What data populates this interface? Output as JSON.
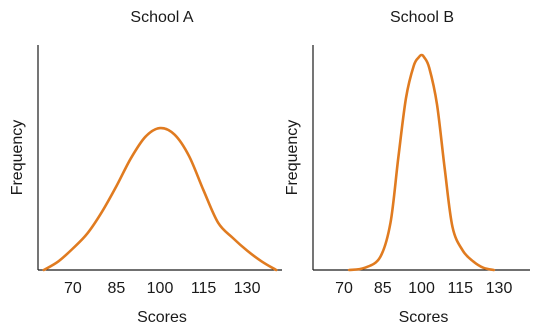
{
  "chart_data": [
    {
      "type": "line",
      "title": "School A",
      "xlabel": "Scores",
      "ylabel": "Frequency",
      "xticks": [
        70,
        85,
        100,
        115,
        130
      ],
      "xlim": [
        58,
        142
      ],
      "ylim": [
        0,
        1
      ],
      "color": "#e07b20",
      "series": [
        {
          "x": [
            60,
            65,
            70,
            75,
            80,
            85,
            90,
            95,
            100,
            105,
            110,
            115,
            120,
            125,
            130,
            135,
            140
          ],
          "y": [
            0.0,
            0.04,
            0.1,
            0.17,
            0.27,
            0.39,
            0.52,
            0.62,
            0.66,
            0.63,
            0.53,
            0.37,
            0.22,
            0.15,
            0.09,
            0.04,
            0.0
          ]
        }
      ]
    },
    {
      "type": "line",
      "title": "School B",
      "xlabel": "Scores",
      "ylabel": "Frequency",
      "xticks": [
        70,
        85,
        100,
        115,
        130
      ],
      "xlim": [
        58,
        142
      ],
      "ylim": [
        0,
        1
      ],
      "color": "#e07b20",
      "series": [
        {
          "x": [
            72,
            78,
            84,
            88,
            91,
            94,
            97,
            99,
            100,
            101,
            103,
            106,
            109,
            112,
            116,
            120,
            124,
            128
          ],
          "y": [
            0.0,
            0.01,
            0.06,
            0.22,
            0.52,
            0.8,
            0.95,
            0.99,
            1.0,
            0.99,
            0.94,
            0.77,
            0.47,
            0.2,
            0.09,
            0.04,
            0.01,
            0.0
          ]
        }
      ]
    }
  ]
}
